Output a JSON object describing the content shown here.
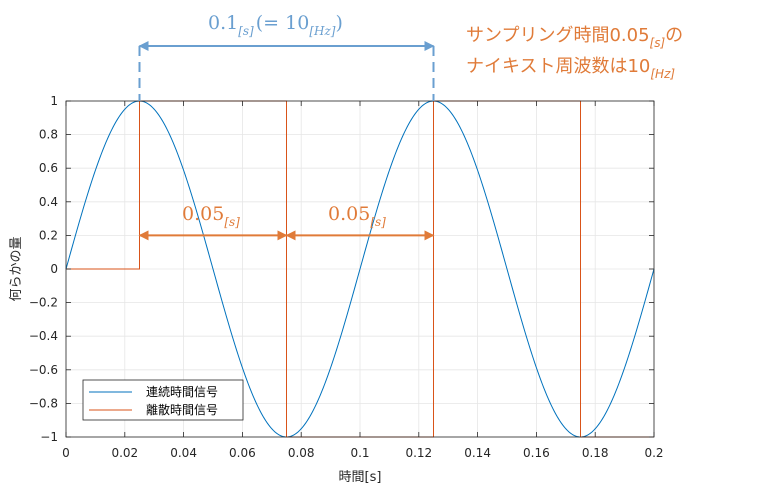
{
  "chart_data": {
    "type": "line",
    "xlabel": "時間[s]",
    "ylabel": "何らかの量",
    "xlim": [
      0,
      0.2
    ],
    "ylim": [
      -1,
      1
    ],
    "grid": true,
    "legend_position": "bottom-left",
    "x_ticks": [
      0,
      0.02,
      0.04,
      0.06,
      0.08,
      0.1,
      0.12,
      0.14,
      0.16,
      0.18,
      0.2
    ],
    "x_tick_labels": [
      "0",
      "0.02",
      "0.04",
      "0.06",
      "0.08",
      "0.1",
      "0.12",
      "0.14",
      "0.16",
      "0.18",
      "0.2"
    ],
    "y_ticks": [
      -1,
      -0.8,
      -0.6,
      -0.4,
      -0.2,
      0,
      0.2,
      0.4,
      0.6,
      0.8,
      1
    ],
    "y_tick_labels": [
      "−1",
      "−0.8",
      "−0.6",
      "−0.4",
      "−0.2",
      "0",
      "0.2",
      "0.4",
      "0.6",
      "0.8",
      "1"
    ],
    "series": [
      {
        "name": "連続時間信号",
        "color": "#0072bd",
        "kind": "sine",
        "frequency": 10,
        "amplitude": 1,
        "phase": 0
      },
      {
        "name": "離散時間信号",
        "color": "#d95319",
        "kind": "step",
        "x": [
          0,
          0.025,
          0.025,
          0.075,
          0.075,
          0.125,
          0.125,
          0.175,
          0.175,
          0.2
        ],
        "y": [
          0,
          0,
          1,
          1,
          -1,
          -1,
          1,
          1,
          -1,
          -1
        ]
      }
    ],
    "annotations": {
      "period": {
        "text": "0.1",
        "sub": "[s]",
        "mid": "(= 10",
        "sub2": "[Hz]",
        "end": ")",
        "x_from": 0.025,
        "x_to": 0.125,
        "color": "#6a9fd0"
      },
      "interval1": {
        "text": "0.05",
        "sub": "[s]",
        "x_from": 0.025,
        "x_to": 0.075,
        "y": 0.2,
        "color": "#e07b39"
      },
      "interval2": {
        "text": "0.05",
        "sub": "[s]",
        "x_from": 0.075,
        "x_to": 0.125,
        "y": 0.2,
        "color": "#e07b39"
      },
      "note": {
        "line1_a": "サンプリング時間0.05",
        "line1_sub": "[s]",
        "line1_b": "の",
        "line2_a": "ナイキスト周波数は10",
        "line2_sub": "[Hz]",
        "color": "#e07b39"
      }
    }
  }
}
